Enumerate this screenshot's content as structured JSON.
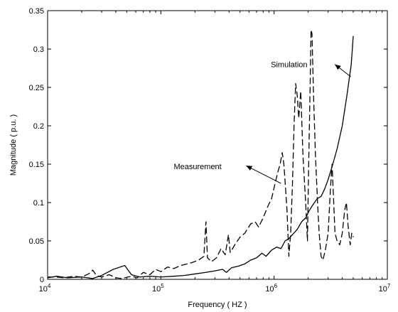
{
  "chart_data": {
    "type": "line",
    "xscale": "log",
    "xlim": [
      10000,
      10000000
    ],
    "ylim": [
      0,
      0.35
    ],
    "xlabel": "Frequency ( HZ )",
    "ylabel": "Magnitude ( p.u. )",
    "x_ticks": [
      {
        "value": 10000,
        "base": "10",
        "exp": "4"
      },
      {
        "value": 100000,
        "base": "10",
        "exp": "5"
      },
      {
        "value": 1000000,
        "base": "10",
        "exp": "6"
      },
      {
        "value": 10000000,
        "base": "10",
        "exp": "7"
      }
    ],
    "y_ticks": [
      {
        "value": 0,
        "label": "0"
      },
      {
        "value": 0.05,
        "label": "0.05"
      },
      {
        "value": 0.1,
        "label": "0.1"
      },
      {
        "value": 0.15,
        "label": "0.15"
      },
      {
        "value": 0.2,
        "label": "0.2"
      },
      {
        "value": 0.25,
        "label": "0.25"
      },
      {
        "value": 0.3,
        "label": "0.3"
      },
      {
        "value": 0.35,
        "label": "0.35"
      }
    ],
    "grid": false,
    "series": [
      {
        "name": "Simulation",
        "style": "solid",
        "color": "#000000",
        "points": [
          [
            10000,
            0.002
          ],
          [
            12000,
            0.004
          ],
          [
            15000,
            0.002
          ],
          [
            20000,
            0.003
          ],
          [
            25000,
            0.001
          ],
          [
            30000,
            0.005
          ],
          [
            38000,
            0.013
          ],
          [
            48000,
            0.018
          ],
          [
            55000,
            0.006
          ],
          [
            65000,
            0.003
          ],
          [
            80000,
            0.004
          ],
          [
            100000,
            0.003
          ],
          [
            130000,
            0.004
          ],
          [
            160000,
            0.005
          ],
          [
            200000,
            0.007
          ],
          [
            250000,
            0.009
          ],
          [
            300000,
            0.011
          ],
          [
            350000,
            0.013
          ],
          [
            380000,
            0.009
          ],
          [
            420000,
            0.015
          ],
          [
            480000,
            0.017
          ],
          [
            550000,
            0.02
          ],
          [
            620000,
            0.025
          ],
          [
            700000,
            0.028
          ],
          [
            780000,
            0.034
          ],
          [
            850000,
            0.03
          ],
          [
            950000,
            0.038
          ],
          [
            1050000,
            0.042
          ],
          [
            1150000,
            0.04
          ],
          [
            1250000,
            0.05
          ],
          [
            1350000,
            0.053
          ],
          [
            1450000,
            0.058
          ],
          [
            1600000,
            0.065
          ],
          [
            1750000,
            0.075
          ],
          [
            1900000,
            0.08
          ],
          [
            2050000,
            0.09
          ],
          [
            2200000,
            0.097
          ],
          [
            2400000,
            0.105
          ],
          [
            2600000,
            0.108
          ],
          [
            2800000,
            0.118
          ],
          [
            3000000,
            0.13
          ],
          [
            3300000,
            0.15
          ],
          [
            3600000,
            0.17
          ],
          [
            4000000,
            0.2
          ],
          [
            4400000,
            0.24
          ],
          [
            4800000,
            0.28
          ],
          [
            5000000,
            0.317
          ]
        ]
      },
      {
        "name": "Measurement",
        "style": "dashed",
        "color": "#000000",
        "points": [
          [
            10000,
            0.003
          ],
          [
            12000,
            0.003
          ],
          [
            14000,
            0.002
          ],
          [
            17000,
            0.004
          ],
          [
            20000,
            0.003
          ],
          [
            23000,
            0.007
          ],
          [
            25000,
            0.012
          ],
          [
            27000,
            0.005
          ],
          [
            30000,
            0.003
          ],
          [
            35000,
            0.006
          ],
          [
            40000,
            0.002
          ],
          [
            45000,
            0.001
          ],
          [
            55000,
            0.004
          ],
          [
            62000,
            0.002
          ],
          [
            70000,
            0.009
          ],
          [
            80000,
            0.006
          ],
          [
            90000,
            0.013
          ],
          [
            100000,
            0.01
          ],
          [
            115000,
            0.016
          ],
          [
            130000,
            0.014
          ],
          [
            150000,
            0.018
          ],
          [
            170000,
            0.02
          ],
          [
            190000,
            0.022
          ],
          [
            215000,
            0.025
          ],
          [
            240000,
            0.03
          ],
          [
            250000,
            0.075
          ],
          [
            258000,
            0.028
          ],
          [
            280000,
            0.023
          ],
          [
            310000,
            0.028
          ],
          [
            340000,
            0.04
          ],
          [
            370000,
            0.032
          ],
          [
            395000,
            0.058
          ],
          [
            410000,
            0.035
          ],
          [
            450000,
            0.045
          ],
          [
            500000,
            0.055
          ],
          [
            550000,
            0.06
          ],
          [
            620000,
            0.072
          ],
          [
            680000,
            0.075
          ],
          [
            730000,
            0.068
          ],
          [
            800000,
            0.08
          ],
          [
            880000,
            0.095
          ],
          [
            950000,
            0.105
          ],
          [
            1020000,
            0.125
          ],
          [
            1080000,
            0.14
          ],
          [
            1130000,
            0.15
          ],
          [
            1180000,
            0.165
          ],
          [
            1220000,
            0.15
          ],
          [
            1260000,
            0.12
          ],
          [
            1300000,
            0.09
          ],
          [
            1350000,
            0.03
          ],
          [
            1400000,
            0.06
          ],
          [
            1450000,
            0.12
          ],
          [
            1500000,
            0.2
          ],
          [
            1550000,
            0.255
          ],
          [
            1600000,
            0.24
          ],
          [
            1650000,
            0.21
          ],
          [
            1720000,
            0.245
          ],
          [
            1800000,
            0.16
          ],
          [
            1900000,
            0.1
          ],
          [
            1970000,
            0.05
          ],
          [
            2020000,
            0.15
          ],
          [
            2080000,
            0.25
          ],
          [
            2120000,
            0.325
          ],
          [
            2160000,
            0.32
          ],
          [
            2230000,
            0.24
          ],
          [
            2320000,
            0.16
          ],
          [
            2420000,
            0.1
          ],
          [
            2500000,
            0.06
          ],
          [
            2600000,
            0.03
          ],
          [
            2700000,
            0.025
          ],
          [
            2850000,
            0.04
          ],
          [
            3000000,
            0.06
          ],
          [
            3150000,
            0.12
          ],
          [
            3250000,
            0.15
          ],
          [
            3350000,
            0.105
          ],
          [
            3450000,
            0.06
          ],
          [
            3600000,
            0.05
          ],
          [
            3800000,
            0.045
          ],
          [
            4000000,
            0.06
          ],
          [
            4200000,
            0.09
          ],
          [
            4350000,
            0.1
          ],
          [
            4500000,
            0.07
          ],
          [
            4700000,
            0.045
          ],
          [
            4850000,
            0.06
          ],
          [
            5000000,
            0.055
          ]
        ]
      }
    ],
    "annotations": [
      {
        "text": "Simulation",
        "text_x": 3200000,
        "text_y": 0.28,
        "arrow_from": [
          3200000,
          0.28
        ],
        "arrow_to": [
          4750000,
          0.264
        ]
      },
      {
        "text": "Measurement",
        "text_x": 130000,
        "text_y": 0.147,
        "arrow_from": [
          1150000,
          0.125
        ],
        "arrow_to": [
          600000,
          0.145
        ]
      }
    ]
  }
}
